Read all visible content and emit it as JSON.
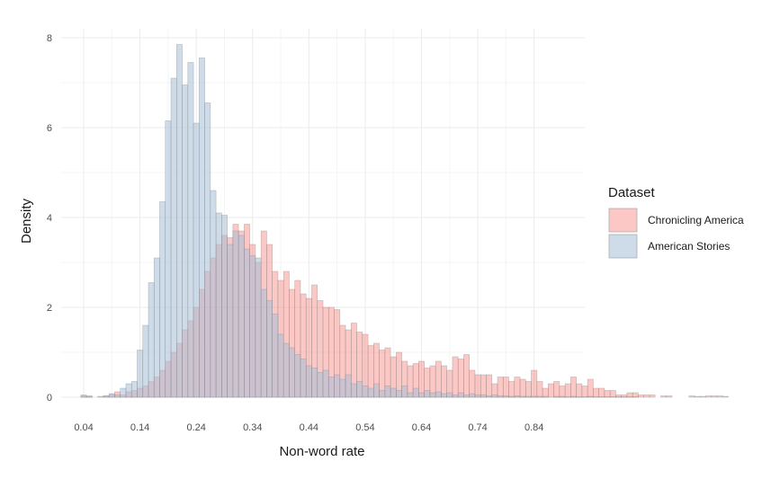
{
  "chart_data": {
    "type": "bar",
    "subtype": "overlapping-histogram",
    "title": "",
    "xlabel": "Non-word rate",
    "ylabel": "Density",
    "xlim": [
      0.0,
      0.93
    ],
    "ylim": [
      0,
      8.2
    ],
    "x_ticks": [
      0.04,
      0.14,
      0.24,
      0.34,
      0.44,
      0.54,
      0.64,
      0.74,
      0.84
    ],
    "x_tick_labels": [
      "0.04",
      "0.14",
      "0.24",
      "0.34",
      "0.44",
      "0.54",
      "0.64",
      "0.74",
      "0.84"
    ],
    "y_ticks": [
      0,
      2,
      4,
      6,
      8
    ],
    "y_tick_labels": [
      "0",
      "2",
      "4",
      "6",
      "8"
    ],
    "bin_width": 0.01,
    "bin_start": 0.04,
    "grid": true,
    "legend": {
      "title": "Dataset",
      "position": "right"
    },
    "series": [
      {
        "name": "Chronicling America",
        "color": "#f8766d",
        "fill_opacity": 0.4,
        "values": [
          0.03,
          0.02,
          0,
          0,
          0.03,
          0.06,
          0.12,
          0.05,
          0.12,
          0.15,
          0.2,
          0.25,
          0.35,
          0.45,
          0.6,
          0.8,
          1.0,
          1.2,
          1.5,
          1.7,
          2.0,
          2.4,
          2.8,
          3.1,
          3.4,
          3.6,
          3.55,
          3.85,
          3.7,
          3.85,
          3.4,
          3.0,
          3.7,
          3.4,
          2.8,
          2.6,
          2.8,
          2.4,
          2.6,
          2.3,
          2.2,
          2.5,
          2.15,
          2.0,
          2.0,
          1.95,
          1.6,
          1.5,
          1.65,
          1.45,
          1.4,
          1.15,
          1.2,
          1.05,
          1.1,
          0.9,
          1.0,
          0.8,
          0.7,
          0.75,
          0.8,
          0.65,
          0.7,
          0.8,
          0.7,
          0.6,
          0.9,
          0.85,
          0.95,
          0.6,
          0.5,
          0.5,
          0.5,
          0.3,
          0.45,
          0.45,
          0.35,
          0.45,
          0.4,
          0.35,
          0.6,
          0.35,
          0.2,
          0.3,
          0.35,
          0.25,
          0.3,
          0.45,
          0.3,
          0.25,
          0.4,
          0.2,
          0.2,
          0.15,
          0.15,
          0.05,
          0.05,
          0.1,
          0.1,
          0.05,
          0.05,
          0.05,
          0,
          0.03,
          0.03,
          0,
          0,
          0,
          0.03,
          0.02,
          0.02,
          0.03,
          0.03,
          0.03,
          0.02
        ]
      },
      {
        "name": "American Stories",
        "color": "#a6bfd8",
        "fill_opacity": 0.55,
        "values": [
          0.05,
          0.03,
          0,
          0.02,
          0.03,
          0.08,
          0.05,
          0.2,
          0.3,
          0.35,
          1.05,
          1.6,
          2.55,
          3.1,
          4.35,
          6.15,
          7.1,
          7.85,
          6.95,
          7.45,
          6.1,
          7.55,
          6.55,
          4.6,
          4.1,
          4.05,
          3.4,
          3.7,
          3.6,
          3.3,
          3.15,
          3.1,
          2.4,
          2.15,
          1.85,
          1.4,
          1.2,
          1.1,
          0.95,
          0.85,
          0.7,
          0.65,
          0.55,
          0.6,
          0.45,
          0.5,
          0.4,
          0.5,
          0.3,
          0.35,
          0.25,
          0.2,
          0.3,
          0.15,
          0.25,
          0.2,
          0.15,
          0.25,
          0.1,
          0.2,
          0.1,
          0.15,
          0.1,
          0.12,
          0.08,
          0.1,
          0.05,
          0.1,
          0.05,
          0.08,
          0.05,
          0.05,
          0.03,
          0.05,
          0.03,
          0.03,
          0.02,
          0.03,
          0.02,
          0.02,
          0.02,
          0.02,
          0.02,
          0,
          0.02,
          0.02,
          0.01,
          0.02,
          0.01,
          0.01,
          0.02,
          0.01,
          0.01,
          0.01,
          0.01,
          0.01,
          0.01,
          0.01,
          0.01,
          0,
          0,
          0,
          0,
          0,
          0,
          0,
          0,
          0,
          0,
          0,
          0,
          0,
          0,
          0,
          0
        ]
      }
    ]
  }
}
